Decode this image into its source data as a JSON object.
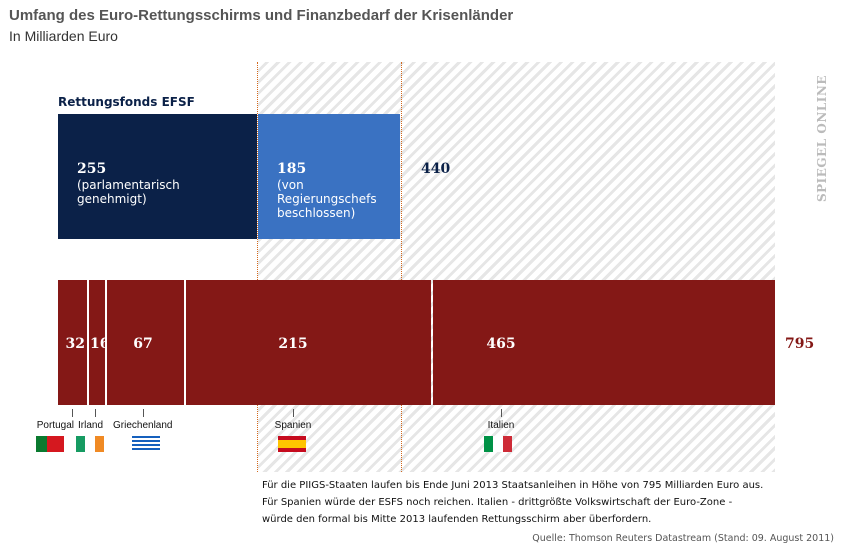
{
  "chart_data": {
    "type": "bar",
    "title": "Umfang des Euro-Rettungsschirms und Finanzbedarf der Krisenländer",
    "subtitle": "In Milliarden Euro",
    "series": [
      {
        "name": "Rettungsfonds EFSF",
        "segments": [
          {
            "value": 255,
            "label": "255",
            "note": "(parlamentarisch genehmigt)",
            "color": "#0b2148"
          },
          {
            "value": 185,
            "label": "185",
            "note": "(von Regierungschefs beschlossen)",
            "color": "#3a72c2"
          }
        ],
        "total": 440,
        "total_label": "440"
      },
      {
        "segments": [
          {
            "value": 32,
            "label": "32",
            "country": "Portugal"
          },
          {
            "value": 16,
            "label": "16",
            "country": "Irland"
          },
          {
            "value": 67,
            "label": "67",
            "country": "Griechenland"
          },
          {
            "value": 215,
            "label": "215",
            "country": "Spanien"
          },
          {
            "value": 465,
            "label": "465",
            "country": "Italien"
          }
        ],
        "color": "#841816",
        "total": 795,
        "total_label": "795"
      }
    ]
  },
  "note": [
    "Für die PIIGS-Staaten laufen bis Ende Juni 2013 Staatsanleihen in Höhe von 795 Milliarden Euro aus.",
    "Für Spanien würde der ESFS noch reichen. Italien - drittgrößte Volkswirtschaft der Euro-Zone -",
    "würde den formal bis Mitte 2013 laufenden Rettungsschirm aber überfordern."
  ],
  "source": "Quelle: Thomson Reuters Datastream (Stand: 09. August 2011)",
  "logo": "SPIEGEL ONLINE"
}
